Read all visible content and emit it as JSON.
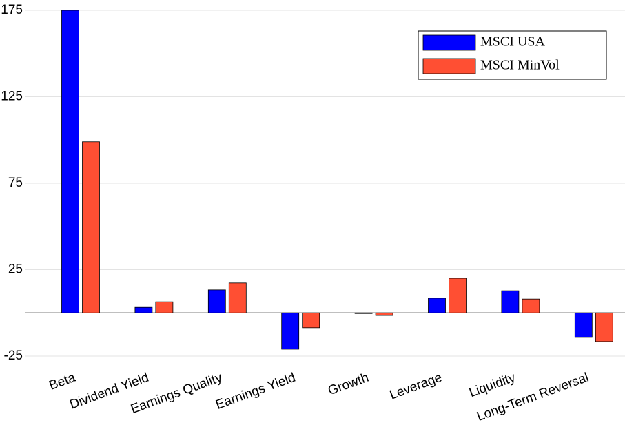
{
  "chart_data": {
    "type": "bar",
    "categories": [
      "Beta",
      "Dividend Yield",
      "Earnings Quality",
      "Earnings Yield",
      "Growth",
      "Leverage",
      "Liquidity",
      "Long-Term Reversal"
    ],
    "series": [
      {
        "name": "MSCI USA",
        "color": "#0000ff",
        "values": [
          175,
          3.2,
          13.3,
          -21,
          -0.3,
          8.5,
          12.8,
          -14.2
        ]
      },
      {
        "name": "MSCI MinVol",
        "color": "#ff4f33",
        "values": [
          99,
          6.4,
          17.3,
          -8.6,
          -1.5,
          20,
          8,
          -16.6
        ]
      }
    ],
    "ylim": [
      -25,
      175
    ],
    "yticks": [
      -25,
      25,
      75,
      125,
      175
    ],
    "grid": true,
    "legend": "upper right"
  }
}
